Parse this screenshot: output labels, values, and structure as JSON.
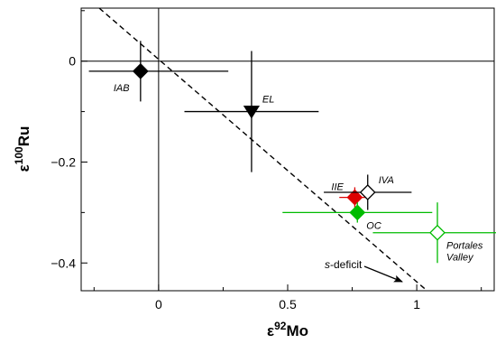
{
  "chart_data": {
    "type": "scatter",
    "xlabel": {
      "base": "ε",
      "sup": "92",
      "rest": "Mo"
    },
    "ylabel": {
      "base": "ε",
      "sup": "100",
      "rest": "Ru"
    },
    "xlim": [
      -0.3,
      1.3
    ],
    "ylim": [
      -0.455,
      0.105
    ],
    "xticks": [
      0,
      0.5,
      1
    ],
    "xtick_labels": [
      "0",
      "0.5",
      "1"
    ],
    "yticks": [
      0,
      -0.2,
      -0.4
    ],
    "ytick_labels": [
      "0",
      "−0.2",
      "−0.4"
    ],
    "reference_lines": {
      "x0": true,
      "y0": true
    },
    "grid": false,
    "points": [
      {
        "label": "IAB",
        "x": -0.07,
        "y": -0.02,
        "xerr": [
          0.2,
          0.34
        ],
        "yerr": 0.06,
        "marker": "diamond",
        "color": "#000000",
        "filled": true,
        "label_pos": "below-left"
      },
      {
        "label": "EL",
        "x": 0.36,
        "y": -0.1,
        "xerr": 0.26,
        "yerr": 0.12,
        "marker": "triangle-down",
        "color": "#000000",
        "filled": true,
        "label_pos": "above-right"
      },
      {
        "label": "IIE",
        "x": 0.76,
        "y": -0.27,
        "xerr": 0.06,
        "yerr": 0.02,
        "marker": "diamond",
        "color": "#dd0000",
        "filled": true,
        "label_pos": "above-left"
      },
      {
        "label": "IVA",
        "x": 0.81,
        "y": -0.26,
        "xerr": 0.17,
        "yerr": 0.035,
        "marker": "diamond",
        "color": "#000000",
        "filled": false,
        "label_pos": "above-right"
      },
      {
        "label": "OC",
        "x": 0.77,
        "y": -0.3,
        "xerr": 0.29,
        "yerr": 0.02,
        "marker": "diamond",
        "color": "#00bb00",
        "filled": true,
        "label_pos": "below-right"
      },
      {
        "label": "Portales Valley",
        "x": 1.08,
        "y": -0.34,
        "xerr": 0.25,
        "yerr": 0.06,
        "marker": "diamond",
        "color": "#00bb00",
        "filled": false,
        "label_pos": "below-right"
      }
    ],
    "trend_line": {
      "x1": -0.23,
      "y1": 0.105,
      "x2": 1.04,
      "y2": -0.455,
      "style": "dashed"
    },
    "annotation": {
      "italic": "s",
      "text": "-deficit",
      "arrow": true
    }
  }
}
